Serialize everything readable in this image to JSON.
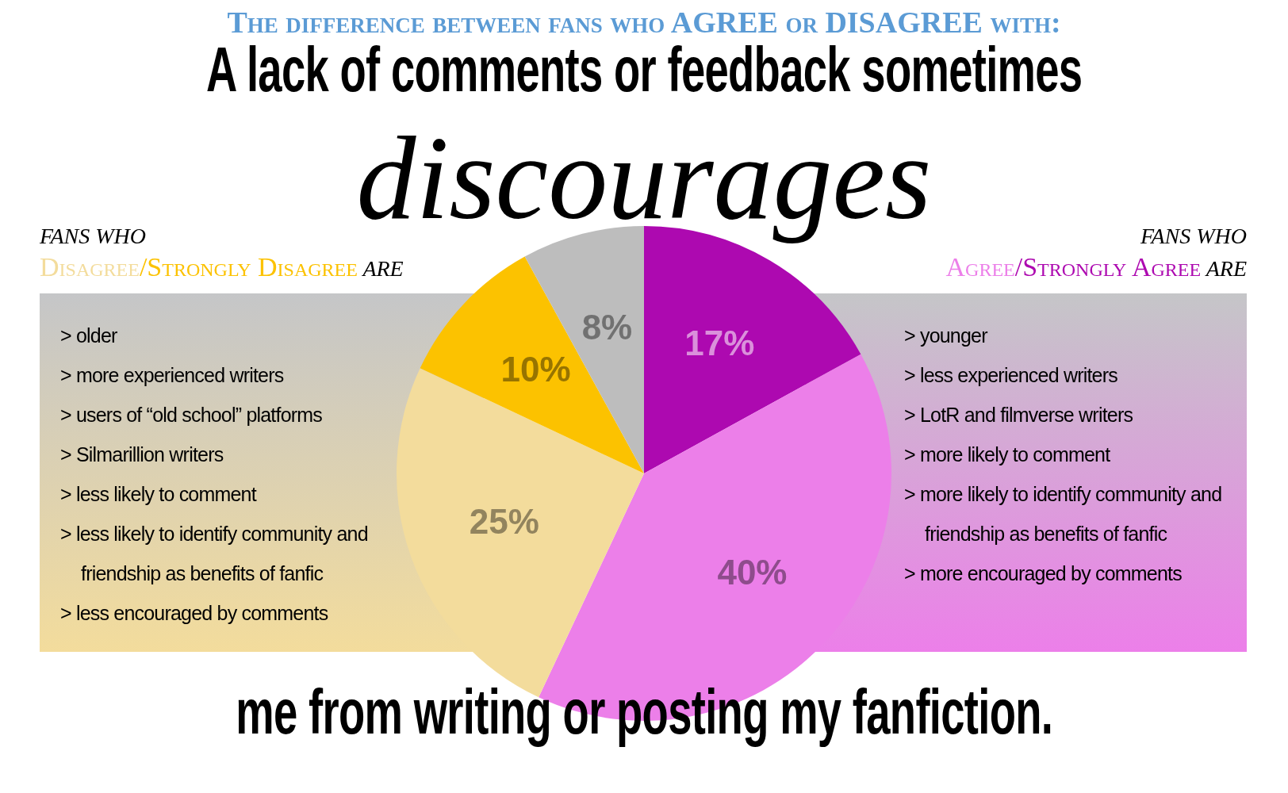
{
  "chart_data": {
    "type": "pie",
    "title": "The difference between fans who AGREE or DISAGREE with:",
    "subtitle": "A lack of comments or feedback sometimes",
    "categories": [
      null,
      null,
      null,
      null,
      null
    ],
    "values": [
      17,
      40,
      25,
      10,
      8
    ],
    "colors": [
      "#ad09b0",
      "#ec7fe9",
      "#f3dc9c",
      "#fcc200",
      "#bdbdbd"
    ],
    "value_labels": [
      "17%",
      "40%",
      "25%",
      "10%",
      "8%"
    ],
    "legend": false,
    "annotations": [
      "discourages",
      "me from writing or posting my fanfiction.",
      "FANS WHO",
      "Disagree/Strongly Disagree ARE",
      "> older",
      "> more experienced writers",
      "> users of “old school” platforms",
      "> Silmarillion writers",
      "> less likely to comment",
      "> less likely to identify community and friendship as benefits of fanfic",
      "> less encouraged by comments",
      "FANS WHO",
      "Agree/Strongly Agree ARE",
      "> younger",
      "> less experienced writers",
      "> LotR and filmverse writers",
      "> more likely to comment",
      "> more likely to identify community and friendship as benefits of fanfic",
      "> more encouraged by comments"
    ]
  }
}
